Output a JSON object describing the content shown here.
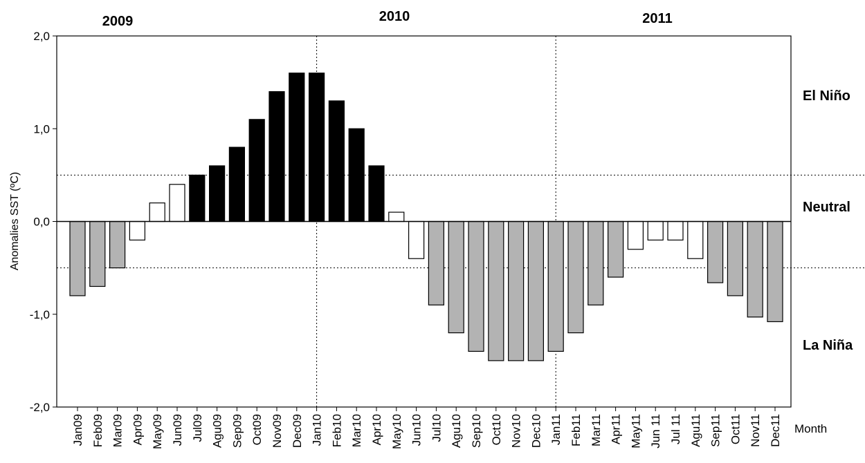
{
  "chart_data": {
    "type": "bar",
    "y_label": "Anomalies SST (ºC)",
    "x_label": "Month",
    "year_labels": [
      "2009",
      "2010",
      "2011"
    ],
    "zone_labels": [
      "El Niño",
      "Neutral",
      "La Niña"
    ],
    "categories": [
      "Jan09",
      "Feb09",
      "Mar09",
      "Apr09",
      "May09",
      "Jun09",
      "Jul09",
      "Agu09",
      "Sep09",
      "Oct09",
      "Nov09",
      "Dec09",
      "Jan10",
      "Feb10",
      "Mar10",
      "Apr10",
      "May10",
      "Jun10",
      "Jul10",
      "Agu10",
      "Sep10",
      "Oct10",
      "Nov10",
      "Dec10",
      "Jan11",
      "Feb11",
      "Mar11",
      "Apr11",
      "May11",
      "Jun 11",
      "Jul 11",
      "Agu11",
      "Sep11",
      "Oct11",
      "Nov11",
      "Dec11"
    ],
    "values": [
      -0.8,
      -0.7,
      -0.5,
      -0.2,
      0.2,
      0.4,
      0.5,
      0.6,
      0.8,
      1.1,
      1.4,
      1.6,
      1.6,
      1.3,
      1.0,
      0.6,
      0.1,
      -0.4,
      -0.9,
      -1.2,
      -1.4,
      -1.5,
      -1.5,
      -1.5,
      -1.4,
      -1.2,
      -0.9,
      -0.6,
      -0.3,
      -0.2,
      -0.2,
      -0.4,
      -0.66,
      -0.8,
      -1.03,
      -1.08
    ],
    "colors": [
      "#b3b3b3",
      "#b3b3b3",
      "#b3b3b3",
      "#ffffff",
      "#ffffff",
      "#ffffff",
      "#000000",
      "#000000",
      "#000000",
      "#000000",
      "#000000",
      "#000000",
      "#000000",
      "#000000",
      "#000000",
      "#000000",
      "#ffffff",
      "#ffffff",
      "#b3b3b3",
      "#b3b3b3",
      "#b3b3b3",
      "#b3b3b3",
      "#b3b3b3",
      "#b3b3b3",
      "#b3b3b3",
      "#b3b3b3",
      "#b3b3b3",
      "#b3b3b3",
      "#ffffff",
      "#ffffff",
      "#ffffff",
      "#ffffff",
      "#b3b3b3",
      "#b3b3b3",
      "#b3b3b3",
      "#b3b3b3"
    ],
    "ylim": [
      -2,
      2
    ],
    "yticks": [
      {
        "value": -2,
        "label": "-2,0"
      },
      {
        "value": -1,
        "label": "-1,0"
      },
      {
        "value": 0,
        "label": "0,0"
      },
      {
        "value": 1,
        "label": "1,0"
      },
      {
        "value": 2,
        "label": "2,0"
      }
    ],
    "hlines": [
      0.5,
      -0.5
    ],
    "vlines": [
      "Jan10",
      "Jan11"
    ]
  }
}
